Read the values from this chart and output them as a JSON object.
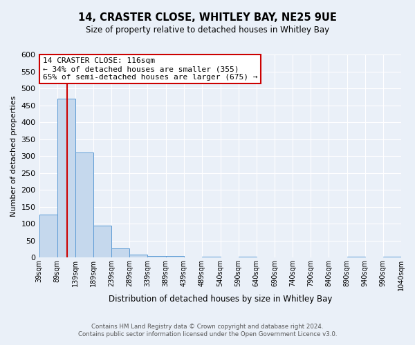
{
  "title": "14, CRASTER CLOSE, WHITLEY BAY, NE25 9UE",
  "subtitle": "Size of property relative to detached houses in Whitley Bay",
  "xlabel": "Distribution of detached houses by size in Whitley Bay",
  "ylabel": "Number of detached properties",
  "bin_edges": [
    39,
    89,
    139,
    189,
    239,
    289,
    339,
    389,
    439,
    489,
    540,
    590,
    640,
    690,
    740,
    790,
    840,
    890,
    940,
    990,
    1040
  ],
  "bar_heights": [
    128,
    470,
    310,
    95,
    27,
    10,
    5,
    5,
    0,
    2,
    0,
    2,
    0,
    0,
    0,
    0,
    0,
    2,
    0,
    2
  ],
  "bar_color": "#c5d8ed",
  "bar_edge_color": "#5b9bd5",
  "property_line_x": 116,
  "property_line_color": "#cc0000",
  "ylim": [
    0,
    600
  ],
  "yticks": [
    0,
    50,
    100,
    150,
    200,
    250,
    300,
    350,
    400,
    450,
    500,
    550,
    600
  ],
  "annotation_line1": "14 CRASTER CLOSE: 116sqm",
  "annotation_line2": "← 34% of detached houses are smaller (355)",
  "annotation_line3": "65% of semi-detached houses are larger (675) →",
  "annotation_box_color": "#ffffff",
  "annotation_box_edge": "#cc0000",
  "footer_line1": "Contains HM Land Registry data © Crown copyright and database right 2024.",
  "footer_line2": "Contains public sector information licensed under the Open Government Licence v3.0.",
  "bg_color": "#eaf0f8",
  "plot_bg_color": "#eaf0f8"
}
